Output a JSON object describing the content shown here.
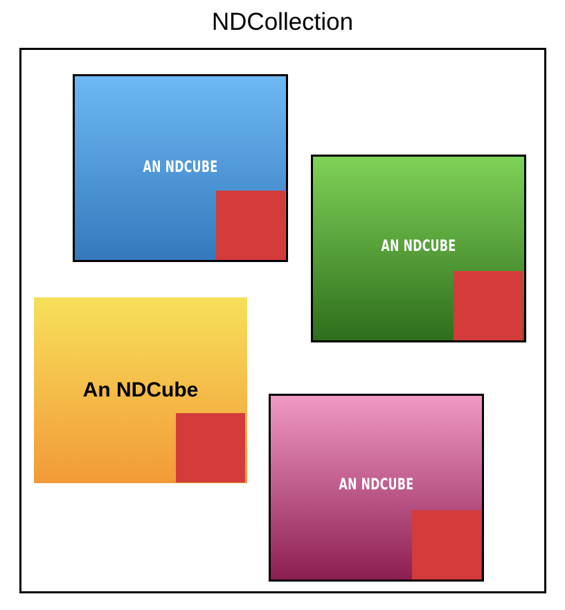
{
  "title": "NDCollection",
  "colors": {
    "frame": "#000000",
    "marker": "#d33c3a"
  },
  "cubes": [
    {
      "name": "blue",
      "label": "AN NDCUBE",
      "gradient": [
        "#6db9f4",
        "#3579bd"
      ],
      "bordered": true
    },
    {
      "name": "green",
      "label": "AN NDCUBE",
      "gradient": [
        "#7fd258",
        "#2e6e1c"
      ],
      "bordered": true
    },
    {
      "name": "yellow",
      "label": "An NDCube",
      "gradient": [
        "#f7e05a",
        "#f29a38"
      ],
      "bordered": false
    },
    {
      "name": "pink",
      "label": "AN NDCUBE",
      "gradient": [
        "#f19ac6",
        "#8c1e52"
      ],
      "bordered": true
    }
  ]
}
